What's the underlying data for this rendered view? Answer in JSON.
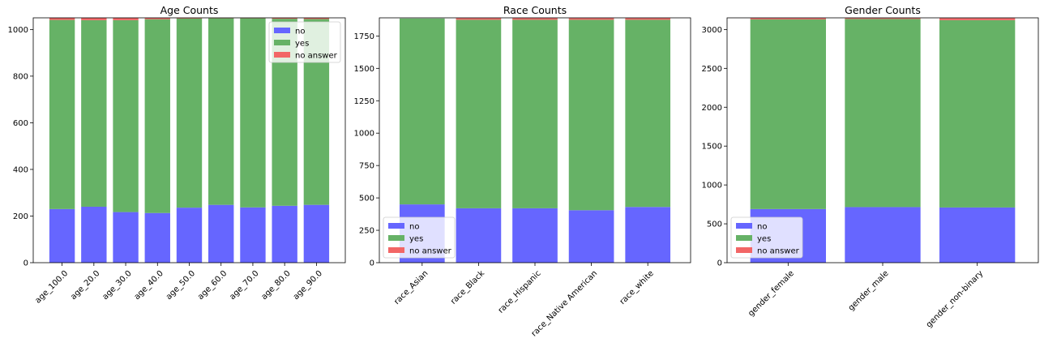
{
  "colors": {
    "no": "#6666ff",
    "yes": "#66b266",
    "no_answer": "#f26666"
  },
  "chart_data": [
    {
      "type": "bar",
      "stacked": true,
      "title": "Age Counts",
      "categories": [
        "age_100.0",
        "age_20.0",
        "age_30.0",
        "age_40.0",
        "age_50.0",
        "age_60.0",
        "age_70.0",
        "age_80.0",
        "age_90.0"
      ],
      "series": [
        {
          "name": "no",
          "values": [
            230,
            240,
            217,
            213,
            236,
            248,
            237,
            244,
            248
          ]
        },
        {
          "name": "yes",
          "values": [
            811,
            800,
            823,
            831,
            811,
            800,
            811,
            802,
            797
          ]
        },
        {
          "name": "no answer",
          "values": [
            9,
            10,
            10,
            6,
            3,
            2,
            2,
            4,
            5
          ]
        }
      ],
      "ylim": [
        0,
        1050
      ],
      "yticks": [
        0,
        200,
        400,
        600,
        800,
        1000
      ],
      "legend_position": "top-right",
      "grid": false
    },
    {
      "type": "bar",
      "stacked": true,
      "title": "Race Counts",
      "categories": [
        "race_Asian",
        "race_Black",
        "race_Hispanic",
        "race_Native American",
        "race_white"
      ],
      "series": [
        {
          "name": "no",
          "values": [
            450,
            420,
            420,
            405,
            430
          ]
        },
        {
          "name": "yes",
          "values": [
            1435,
            1455,
            1455,
            1470,
            1445
          ]
        },
        {
          "name": "no answer",
          "values": [
            0,
            12,
            12,
            12,
            12
          ]
        }
      ],
      "ylim": [
        0,
        1890
      ],
      "yticks": [
        0,
        250,
        500,
        750,
        1000,
        1250,
        1500,
        1750
      ],
      "legend_position": "lower-left",
      "grid": false
    },
    {
      "type": "bar",
      "stacked": true,
      "title": "Gender Counts",
      "categories": [
        "gender_female",
        "gender_male",
        "gender_non-binary"
      ],
      "series": [
        {
          "name": "no",
          "values": [
            690,
            715,
            710
          ]
        },
        {
          "name": "yes",
          "values": [
            2440,
            2420,
            2410
          ]
        },
        {
          "name": "no answer",
          "values": [
            15,
            10,
            25
          ]
        }
      ],
      "ylim": [
        0,
        3150
      ],
      "yticks": [
        0,
        500,
        1000,
        1500,
        2000,
        2500,
        3000
      ],
      "legend_position": "lower-left",
      "grid": false
    }
  ]
}
